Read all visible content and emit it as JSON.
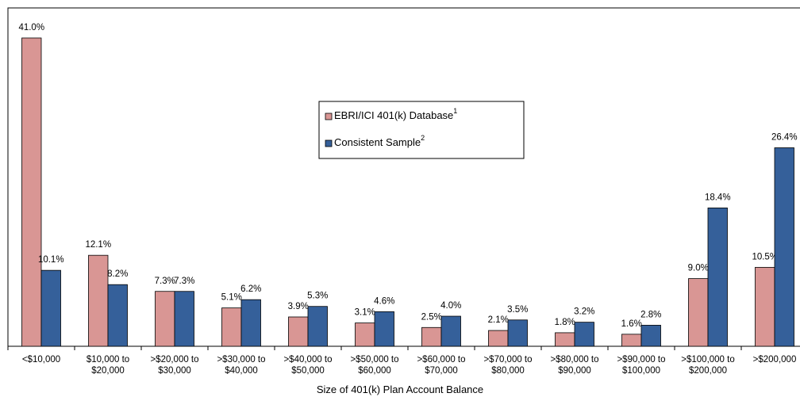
{
  "chart_data": {
    "type": "bar",
    "x_label": "Size of 401(k) Plan Account Balance",
    "categories": [
      "<$10,000",
      "$10,000 to\n$20,000",
      ">$20,000 to\n$30,000",
      ">$30,000 to\n$40,000",
      ">$40,000 to\n$50,000",
      ">$50,000 to\n$60,000",
      ">$60,000 to\n$70,000",
      ">$70,000 to\n$80,000",
      ">$80,000 to\n$90,000",
      ">$90,000 to\n$100,000",
      ">$100,000 to\n$200,000",
      ">$200,000"
    ],
    "series": [
      {
        "name": "EBRI/ICI 401(k) Database",
        "note": "1",
        "color": "#d99694",
        "values": [
          41.0,
          12.1,
          7.3,
          5.1,
          3.9,
          3.1,
          2.5,
          2.1,
          1.8,
          1.6,
          9.0,
          10.5
        ],
        "value_labels": [
          "41.0%",
          "12.1%",
          "7.3%",
          "5.1%",
          "3.9%",
          "3.1%",
          "2.5%",
          "2.1%",
          "1.8%",
          "1.6%",
          "9.0%",
          "10.5%"
        ]
      },
      {
        "name": "Consistent Sample",
        "note": "2",
        "color": "#35609a",
        "values": [
          10.1,
          8.2,
          7.3,
          6.2,
          5.3,
          4.6,
          4.0,
          3.5,
          3.2,
          2.8,
          18.4,
          26.4
        ],
        "value_labels": [
          "10.1%",
          "8.2%",
          "7.3%",
          "6.2%",
          "5.3%",
          "4.6%",
          "4.0%",
          "3.5%",
          "3.2%",
          "2.8%",
          "18.4%",
          "26.4%"
        ]
      }
    ],
    "ylim": [
      0,
      45
    ],
    "legend": "center"
  }
}
